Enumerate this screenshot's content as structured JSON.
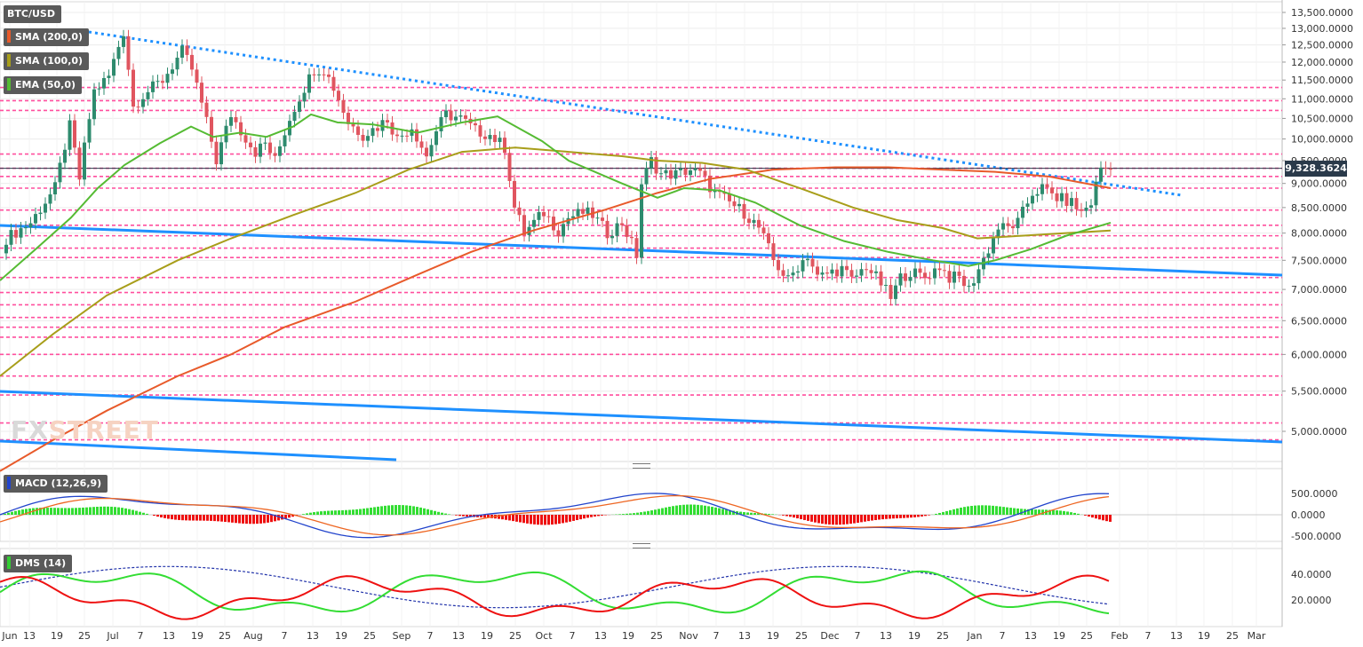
{
  "symbol": "BTC/USD",
  "indicators": {
    "sma200": {
      "label": "SMA (200,0)",
      "color": "#e85a2a"
    },
    "sma100": {
      "label": "SMA (100,0)",
      "color": "#a89e1a"
    },
    "ema50": {
      "label": "EMA (50,0)",
      "color": "#55bb33"
    },
    "macd": {
      "label": "MACD (12,26,9)",
      "color": "#2244cc"
    },
    "dms": {
      "label": "DMS (14)",
      "color": "#33cc33"
    }
  },
  "watermark": {
    "part1": "FX",
    "part2": "STREET"
  },
  "last_price": "9,328.3624",
  "colors": {
    "up": "#2e8b6e",
    "down": "#e0555f",
    "trendline": "#1e90ff",
    "hline": "#ff4f9e",
    "grid": "#ececec"
  },
  "chart_data": [
    {
      "type": "candlestick",
      "title": "BTC/USD",
      "y_ticks": [
        "13,500.0000",
        "13,000.0000",
        "12,500.0000",
        "12,000.0000",
        "11,500.0000",
        "11,000.0000",
        "10,500.0000",
        "10,000.0000",
        "9,500.0000",
        "9,000.0000",
        "8,500.0000",
        "8,000.0000",
        "7,500.0000",
        "7,000.0000",
        "6,500.0000",
        "6,000.0000",
        "5,500.0000",
        "5,000.0000"
      ],
      "x_ticks": [
        "Jun",
        "13",
        "19",
        "25",
        "Jul",
        "7",
        "13",
        "19",
        "25",
        "Aug",
        "7",
        "13",
        "19",
        "25",
        "Sep",
        "7",
        "13",
        "19",
        "25",
        "Oct",
        "7",
        "13",
        "19",
        "25",
        "Nov",
        "7",
        "13",
        "19",
        "25",
        "Dec",
        "7",
        "13",
        "19",
        "25",
        "Jan",
        "7",
        "13",
        "19",
        "25",
        "Feb",
        "7",
        "13",
        "19",
        "25",
        "Mar"
      ],
      "close_path": [
        [
          0,
          7900
        ],
        [
          5,
          8200
        ],
        [
          10,
          8900
        ],
        [
          13,
          10300
        ],
        [
          15,
          9100
        ],
        [
          18,
          11200
        ],
        [
          21,
          11600
        ],
        [
          24,
          12900
        ],
        [
          26,
          10800
        ],
        [
          28,
          11100
        ],
        [
          32,
          11500
        ],
        [
          34,
          11900
        ],
        [
          36,
          12300
        ],
        [
          38,
          11800
        ],
        [
          41,
          10400
        ],
        [
          43,
          9500
        ],
        [
          46,
          10600
        ],
        [
          48,
          10200
        ],
        [
          51,
          9700
        ],
        [
          53,
          9900
        ],
        [
          55,
          9500
        ],
        [
          58,
          10500
        ],
        [
          61,
          11300
        ],
        [
          63,
          11800
        ],
        [
          65,
          11800
        ],
        [
          67,
          11300
        ],
        [
          70,
          10400
        ],
        [
          73,
          10100
        ],
        [
          76,
          10300
        ],
        [
          78,
          10500
        ],
        [
          80,
          10000
        ],
        [
          83,
          10300
        ],
        [
          86,
          9600
        ],
        [
          88,
          10200
        ],
        [
          90,
          10600
        ],
        [
          93,
          10500
        ],
        [
          96,
          10200
        ],
        [
          99,
          10100
        ],
        [
          102,
          9800
        ],
        [
          104,
          8500
        ],
        [
          106,
          8000
        ],
        [
          108,
          8200
        ],
        [
          110,
          8400
        ],
        [
          113,
          8050
        ],
        [
          115,
          8300
        ],
        [
          118,
          8400
        ],
        [
          120,
          8350
        ],
        [
          123,
          8000
        ],
        [
          126,
          8200
        ],
        [
          129,
          7600
        ],
        [
          130,
          9000
        ],
        [
          132,
          9500
        ],
        [
          134,
          9200
        ],
        [
          137,
          9200
        ],
        [
          140,
          9300
        ],
        [
          142,
          9200
        ],
        [
          145,
          8800
        ],
        [
          148,
          8600
        ],
        [
          151,
          8400
        ],
        [
          154,
          8100
        ],
        [
          157,
          7500
        ],
        [
          160,
          7150
        ],
        [
          162,
          7400
        ],
        [
          164,
          7600
        ],
        [
          166,
          7200
        ],
        [
          169,
          7300
        ],
        [
          171,
          7350
        ],
        [
          173,
          7150
        ],
        [
          176,
          7400
        ],
        [
          179,
          7100
        ],
        [
          181,
          6850
        ],
        [
          183,
          7200
        ],
        [
          185,
          7300
        ],
        [
          188,
          7200
        ],
        [
          191,
          7400
        ],
        [
          193,
          7200
        ],
        [
          195,
          7200
        ],
        [
          197,
          7000
        ],
        [
          199,
          7350
        ],
        [
          201,
          7700
        ],
        [
          203,
          8100
        ],
        [
          205,
          8100
        ],
        [
          207,
          8200
        ],
        [
          210,
          8800
        ],
        [
          212,
          8900
        ],
        [
          215,
          8700
        ],
        [
          218,
          8600
        ],
        [
          220,
          8400
        ],
        [
          222,
          8600
        ],
        [
          224,
          9350
        ],
        [
          226,
          9300
        ]
      ],
      "hlines": [
        11300,
        10950,
        10700,
        9650,
        9330,
        9150,
        8900,
        8450,
        8150,
        7950,
        7720,
        7550,
        7200,
        6950,
        6750,
        6550,
        6400,
        6250,
        6000,
        5700,
        5450,
        5100,
        4900
      ]
    },
    {
      "type": "line",
      "title": "MACD (12,26,9)",
      "y_ticks": [
        "500.0000",
        "0.0000",
        "-500.0000"
      ]
    },
    {
      "type": "line",
      "title": "DMS (14)",
      "y_ticks": [
        "40.0000",
        "20.0000"
      ]
    }
  ]
}
